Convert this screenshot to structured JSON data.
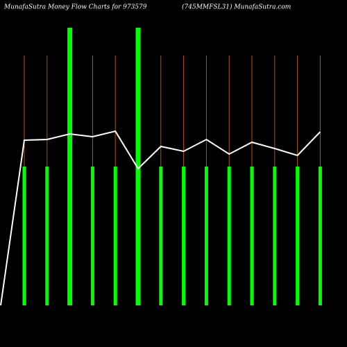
{
  "chart_data": {
    "type": "bar",
    "title": "MunafaSutra  Money Flow  Charts for 973579",
    "subtitle": "(745MMFSL31) MunafaSutra.com",
    "categories": [
      null,
      null,
      null,
      null,
      null,
      null,
      null,
      null,
      null,
      null,
      null,
      null,
      null,
      null
    ],
    "values": [
      200,
      200,
      400,
      200,
      200,
      400,
      200,
      200,
      200,
      200,
      200,
      200,
      200,
      200
    ],
    "color": "#00ff00",
    "ylim": [
      0,
      400
    ],
    "line": {
      "color": "#ffffff",
      "x": [
        0,
        1,
        2,
        3,
        4,
        5,
        6,
        7,
        8,
        9,
        10,
        11,
        12,
        13,
        14
      ],
      "values": [
        0,
        238,
        239,
        247,
        243,
        251,
        197,
        229,
        222,
        239,
        218,
        235,
        226,
        216,
        250
      ]
    },
    "guide_color": "#b35900"
  }
}
